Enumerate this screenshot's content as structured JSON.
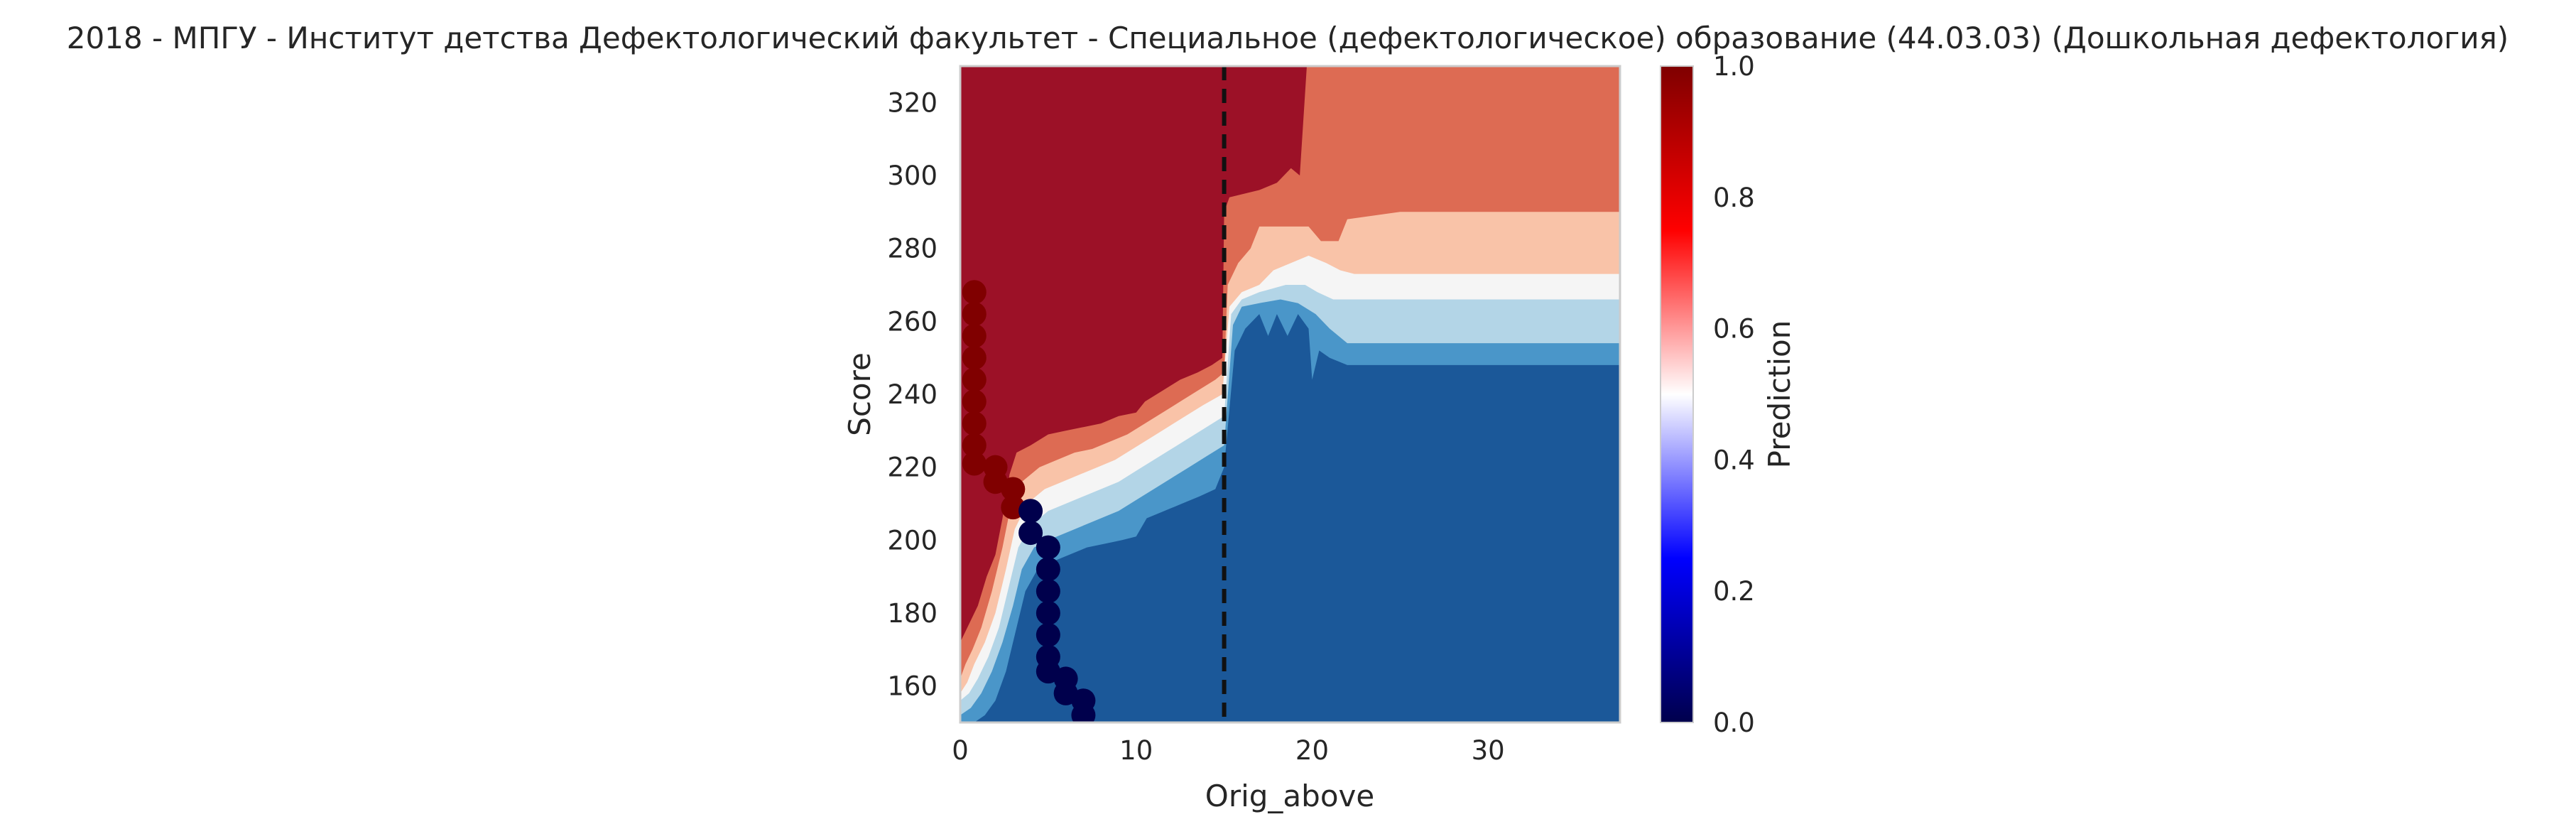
{
  "chart_data": {
    "type": "heatmap",
    "title": "2018 - МПГУ - Институт детства Дефектологический факультет - Специальное (дефектологическое) образование (44.03.03) (Дошкольная дефектология)",
    "xlabel": "Orig_above",
    "ylabel": "Score",
    "xlim": [
      0,
      37.5
    ],
    "ylim": [
      150,
      330
    ],
    "xticks": [
      0,
      10,
      20,
      30
    ],
    "yticks": [
      160,
      180,
      200,
      220,
      240,
      260,
      280,
      300,
      320
    ],
    "grid": false,
    "colorbar": {
      "label": "Prediction",
      "range": [
        0.0,
        1.0
      ],
      "ticks": [
        "0.0",
        "0.2",
        "0.4",
        "0.6",
        "0.8",
        "1.0"
      ],
      "colormap": "seismic"
    },
    "contour_levels": [
      {
        "level": 0.0,
        "color": "#1b5899"
      },
      {
        "level": 0.1,
        "color": "#4a96c9"
      },
      {
        "level": 0.2,
        "color": "#b3d5e7"
      },
      {
        "level": 0.3,
        "color": "#f5f5f5"
      },
      {
        "level": 0.4,
        "color": "#f9c3a8"
      },
      {
        "level": 0.5,
        "color": "#dd6b53"
      },
      {
        "level": 0.6,
        "color": "#9c1127"
      }
    ],
    "boundaries": [
      {
        "name": "b1",
        "points": [
          [
            0.0,
            172
          ],
          [
            0.2,
            174
          ],
          [
            0.6,
            178
          ],
          [
            1.0,
            182
          ],
          [
            1.5,
            190
          ],
          [
            2.0,
            196
          ],
          [
            2.4,
            206
          ],
          [
            2.8,
            218
          ],
          [
            3.2,
            224
          ],
          [
            4.0,
            226
          ],
          [
            5.0,
            229
          ],
          [
            6.0,
            230
          ],
          [
            7.0,
            231
          ],
          [
            8.0,
            232
          ],
          [
            9.0,
            234
          ],
          [
            10.0,
            235
          ],
          [
            10.5,
            238
          ],
          [
            11.5,
            241
          ],
          [
            12.5,
            244
          ],
          [
            13.5,
            246
          ],
          [
            14.3,
            248
          ],
          [
            14.9,
            250
          ],
          [
            15.0,
            290
          ],
          [
            15.3,
            294
          ],
          [
            17.0,
            296
          ],
          [
            18.0,
            298
          ],
          [
            18.8,
            302
          ],
          [
            19.3,
            300
          ],
          [
            19.7,
            330
          ],
          [
            37.5,
            330
          ]
        ]
      },
      {
        "name": "b2",
        "points": [
          [
            0.0,
            162
          ],
          [
            0.3,
            166
          ],
          [
            0.7,
            170
          ],
          [
            1.2,
            176
          ],
          [
            1.8,
            186
          ],
          [
            2.4,
            198
          ],
          [
            2.9,
            210
          ],
          [
            3.5,
            216
          ],
          [
            4.5,
            220
          ],
          [
            5.5,
            222
          ],
          [
            6.5,
            224
          ],
          [
            7.5,
            225
          ],
          [
            8.5,
            227
          ],
          [
            9.5,
            229
          ],
          [
            10.5,
            232
          ],
          [
            11.5,
            235
          ],
          [
            12.5,
            238
          ],
          [
            13.5,
            241
          ],
          [
            14.5,
            244
          ],
          [
            15.0,
            246
          ],
          [
            15.2,
            270
          ],
          [
            15.8,
            276
          ],
          [
            16.5,
            280
          ],
          [
            17.0,
            286
          ],
          [
            19.8,
            286
          ],
          [
            20.5,
            282
          ],
          [
            21.5,
            282
          ],
          [
            22.0,
            288
          ],
          [
            25.0,
            290
          ],
          [
            37.5,
            290
          ]
        ]
      },
      {
        "name": "b3",
        "points": [
          [
            0.0,
            158
          ],
          [
            0.4,
            161
          ],
          [
            0.8,
            166
          ],
          [
            1.4,
            172
          ],
          [
            2.0,
            180
          ],
          [
            2.6,
            192
          ],
          [
            3.1,
            203
          ],
          [
            3.8,
            210
          ],
          [
            4.8,
            214
          ],
          [
            5.8,
            216
          ],
          [
            6.8,
            218
          ],
          [
            7.8,
            220
          ],
          [
            8.8,
            222
          ],
          [
            9.8,
            225
          ],
          [
            10.8,
            228
          ],
          [
            11.8,
            231
          ],
          [
            12.8,
            234
          ],
          [
            13.8,
            237
          ],
          [
            14.9,
            240
          ],
          [
            15.3,
            264
          ],
          [
            16.0,
            268
          ],
          [
            17.0,
            270
          ],
          [
            17.8,
            274
          ],
          [
            19.8,
            278
          ],
          [
            20.8,
            276
          ],
          [
            21.6,
            274
          ],
          [
            22.4,
            273
          ],
          [
            37.5,
            273
          ]
        ]
      },
      {
        "name": "b4",
        "points": [
          [
            0.0,
            156
          ],
          [
            0.5,
            158
          ],
          [
            1.0,
            162
          ],
          [
            1.6,
            168
          ],
          [
            2.2,
            176
          ],
          [
            2.8,
            188
          ],
          [
            3.3,
            198
          ],
          [
            4.0,
            204
          ],
          [
            5.0,
            208
          ],
          [
            6.0,
            210
          ],
          [
            7.0,
            212
          ],
          [
            8.0,
            214
          ],
          [
            9.0,
            216
          ],
          [
            10.0,
            219
          ],
          [
            11.0,
            222
          ],
          [
            12.0,
            225
          ],
          [
            13.0,
            228
          ],
          [
            14.0,
            231
          ],
          [
            15.0,
            234
          ],
          [
            15.4,
            262
          ],
          [
            16.0,
            266
          ],
          [
            17.0,
            268
          ],
          [
            18.5,
            270
          ],
          [
            19.6,
            270
          ],
          [
            20.3,
            268
          ],
          [
            21.2,
            266
          ],
          [
            22.0,
            266
          ],
          [
            37.5,
            266
          ]
        ]
      },
      {
        "name": "b5",
        "points": [
          [
            0.0,
            152
          ],
          [
            0.6,
            154
          ],
          [
            1.2,
            158
          ],
          [
            1.8,
            164
          ],
          [
            2.4,
            172
          ],
          [
            3.0,
            182
          ],
          [
            3.5,
            192
          ],
          [
            4.2,
            198
          ],
          [
            5.0,
            200
          ],
          [
            6.0,
            202
          ],
          [
            7.0,
            204
          ],
          [
            8.0,
            206
          ],
          [
            9.0,
            208
          ],
          [
            10.0,
            211
          ],
          [
            11.0,
            214
          ],
          [
            12.0,
            217
          ],
          [
            13.0,
            220
          ],
          [
            14.0,
            223
          ],
          [
            15.0,
            226
          ],
          [
            15.5,
            259
          ],
          [
            16.0,
            264
          ],
          [
            17.0,
            265
          ],
          [
            18.2,
            266
          ],
          [
            19.2,
            265
          ],
          [
            20.2,
            262
          ],
          [
            21.0,
            258
          ],
          [
            22.0,
            254
          ],
          [
            37.5,
            254
          ]
        ]
      },
      {
        "name": "b6",
        "points": [
          [
            0.0,
            150
          ],
          [
            0.8,
            150
          ],
          [
            1.4,
            152
          ],
          [
            2.0,
            156
          ],
          [
            2.6,
            164
          ],
          [
            3.2,
            176
          ],
          [
            3.7,
            186
          ],
          [
            4.4,
            192
          ],
          [
            5.2,
            194
          ],
          [
            6.2,
            196
          ],
          [
            7.2,
            198
          ],
          [
            8.2,
            199
          ],
          [
            9.2,
            200
          ],
          [
            10.0,
            201
          ],
          [
            10.6,
            206
          ],
          [
            11.6,
            208
          ],
          [
            12.6,
            210
          ],
          [
            13.6,
            212
          ],
          [
            14.5,
            214
          ],
          [
            15.0,
            220
          ],
          [
            15.6,
            252
          ],
          [
            16.2,
            258
          ],
          [
            17.0,
            262
          ],
          [
            17.5,
            256
          ],
          [
            18.0,
            262
          ],
          [
            18.6,
            256
          ],
          [
            19.2,
            262
          ],
          [
            19.8,
            258
          ],
          [
            20.0,
            244
          ],
          [
            20.4,
            252
          ],
          [
            21.0,
            250
          ],
          [
            22.0,
            248
          ],
          [
            37.5,
            248
          ]
        ]
      }
    ],
    "threshold_line": {
      "x": 15,
      "style": "dashed"
    },
    "points": [
      {
        "x": 0.8,
        "y": 268,
        "value": 1.0
      },
      {
        "x": 0.8,
        "y": 262,
        "value": 1.0
      },
      {
        "x": 0.8,
        "y": 256,
        "value": 1.0
      },
      {
        "x": 0.8,
        "y": 250,
        "value": 1.0
      },
      {
        "x": 0.8,
        "y": 244,
        "value": 1.0
      },
      {
        "x": 0.8,
        "y": 238,
        "value": 1.0
      },
      {
        "x": 0.8,
        "y": 232,
        "value": 1.0
      },
      {
        "x": 0.8,
        "y": 226,
        "value": 1.0
      },
      {
        "x": 0.8,
        "y": 221,
        "value": 1.0
      },
      {
        "x": 2.0,
        "y": 220,
        "value": 1.0
      },
      {
        "x": 2.0,
        "y": 216,
        "value": 1.0
      },
      {
        "x": 3.0,
        "y": 214,
        "value": 1.0
      },
      {
        "x": 3.0,
        "y": 209,
        "value": 1.0
      },
      {
        "x": 4.0,
        "y": 208,
        "value": 0.0
      },
      {
        "x": 4.0,
        "y": 202,
        "value": 0.0
      },
      {
        "x": 5.0,
        "y": 198,
        "value": 0.0
      },
      {
        "x": 5.0,
        "y": 192,
        "value": 0.0
      },
      {
        "x": 5.0,
        "y": 186,
        "value": 0.0
      },
      {
        "x": 5.0,
        "y": 180,
        "value": 0.0
      },
      {
        "x": 5.0,
        "y": 174,
        "value": 0.0
      },
      {
        "x": 5.0,
        "y": 168,
        "value": 0.0
      },
      {
        "x": 5.0,
        "y": 164,
        "value": 0.0
      },
      {
        "x": 6.0,
        "y": 162,
        "value": 0.0
      },
      {
        "x": 6.0,
        "y": 158,
        "value": 0.0
      },
      {
        "x": 7.0,
        "y": 156,
        "value": 0.0
      },
      {
        "x": 7.0,
        "y": 152,
        "value": 0.0
      }
    ]
  }
}
